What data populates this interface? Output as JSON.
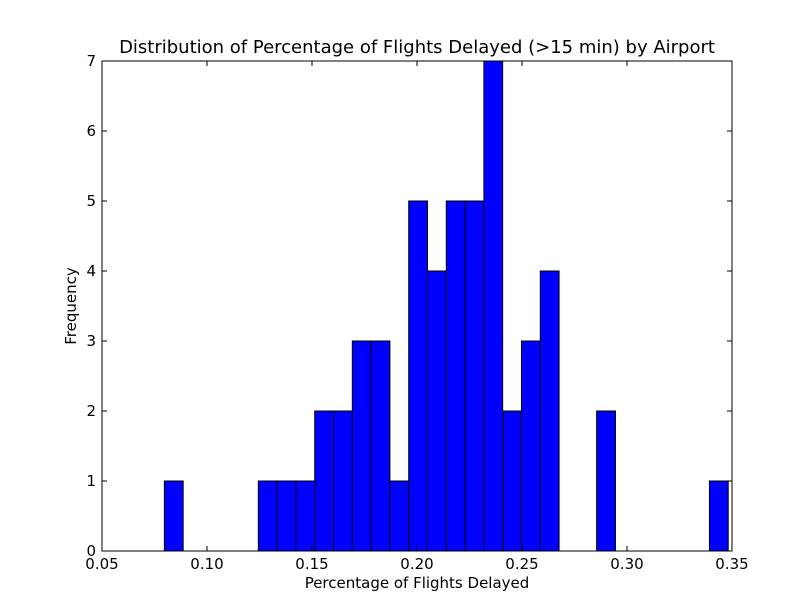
{
  "chart_data": {
    "type": "bar",
    "title": "Distribution of Percentage of Flights Delayed (>15 min) by Airport",
    "xlabel": "Percentage of Flights Delayed",
    "ylabel": "Frequency",
    "xlim": [
      0.05,
      0.35
    ],
    "ylim": [
      0,
      7
    ],
    "x_ticks": [
      "0.05",
      "0.10",
      "0.15",
      "0.20",
      "0.25",
      "0.30",
      "0.35"
    ],
    "y_ticks": [
      "0",
      "1",
      "2",
      "3",
      "4",
      "5",
      "6",
      "7"
    ],
    "bin_start": 0.0797,
    "bin_width": 0.00895,
    "values": [
      1,
      0,
      0,
      0,
      0,
      1,
      1,
      1,
      2,
      2,
      3,
      3,
      1,
      5,
      4,
      5,
      5,
      7,
      2,
      3,
      4,
      0,
      0,
      2,
      0,
      0,
      0,
      0,
      0,
      1
    ],
    "grid": false,
    "bar_color": "#0000ff",
    "edge_color": "#000000"
  }
}
